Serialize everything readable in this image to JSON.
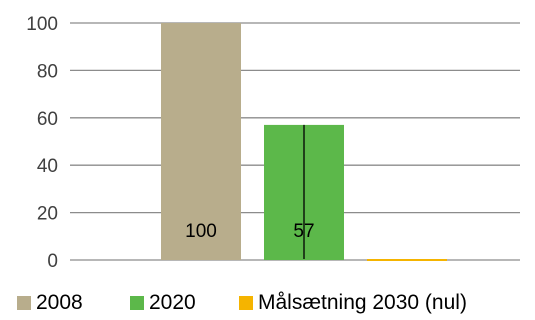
{
  "chart_data": {
    "type": "bar",
    "categories": [
      "2008",
      "2020",
      "Målsætning 2030 (nul)"
    ],
    "series": [
      {
        "name": "2008",
        "values": [
          100,
          null,
          null
        ],
        "color": "#b8ad8c",
        "data_label": "100"
      },
      {
        "name": "2020",
        "values": [
          null,
          57,
          null
        ],
        "color": "#5cb84a",
        "data_label": "57",
        "error_bar": [
          0,
          57
        ]
      },
      {
        "name": "Målsætning 2030 (nul)",
        "values": [
          null,
          null,
          0
        ],
        "color": "#f5b400"
      }
    ],
    "yticks": [
      "0",
      "20",
      "40",
      "60",
      "80",
      "100"
    ],
    "ylim": [
      0,
      100
    ],
    "grid": true,
    "legend_position": "bottom",
    "title": "",
    "xlabel": "",
    "ylabel": ""
  }
}
